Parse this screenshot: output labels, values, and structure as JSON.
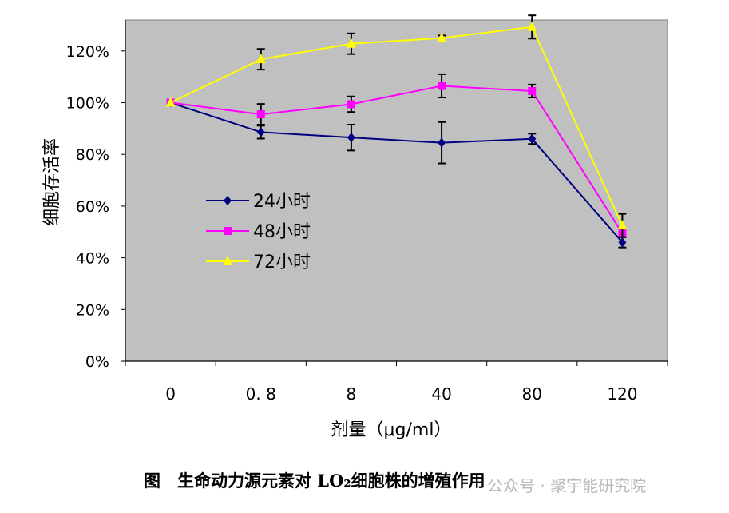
{
  "chart_data": {
    "type": "line",
    "title": "",
    "xlabel": "剂量（μg/ml）",
    "ylabel": "细胞存活率",
    "categories": [
      "0",
      "0. 8",
      "8",
      "40",
      "80",
      "120"
    ],
    "ylim": [
      0,
      132
    ],
    "yticks": [
      "0%",
      "20%",
      "40%",
      "60%",
      "80%",
      "100%",
      "120%"
    ],
    "ytick_values": [
      0,
      20,
      40,
      60,
      80,
      100,
      120
    ],
    "grid": false,
    "legend_position": "center-left",
    "plot_background": "#C0C0C0",
    "series": [
      {
        "name": "24小时",
        "color": "#000080",
        "marker": "diamond",
        "values": [
          100,
          88.6,
          86.5,
          84.5,
          86,
          46
        ],
        "errors": [
          0,
          2.5,
          5,
          8,
          2,
          2
        ]
      },
      {
        "name": "48小时",
        "color": "#FF00FF",
        "marker": "square",
        "values": [
          100,
          95.5,
          99.4,
          106.5,
          104.5,
          49.5
        ],
        "errors": [
          0,
          4,
          3,
          4.5,
          2.5,
          0
        ]
      },
      {
        "name": "72小时",
        "color": "#FFFF00",
        "marker": "triangle",
        "values": [
          100,
          116.8,
          122.8,
          125,
          129.3,
          52.5
        ],
        "errors": [
          0,
          4,
          4,
          1,
          4.5,
          4.5
        ]
      }
    ]
  },
  "caption": "图　生命动力源元素对 LO₂细胞株的增殖作用",
  "watermark": "公众号 · 聚宇能研究院"
}
